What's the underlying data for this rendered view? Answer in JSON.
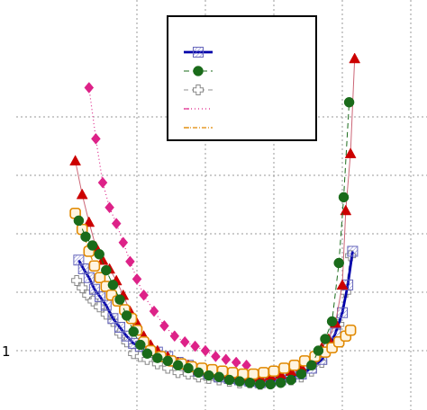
{
  "chart_data": {
    "type": "scatter",
    "title": "",
    "xlabel": "",
    "ylabel": "",
    "xlim": [
      0,
      5
    ],
    "ylim": [
      0.6,
      3.0
    ],
    "grid": true,
    "yticks": [
      1.0,
      1.4,
      1.8,
      2.2,
      2.6
    ],
    "ytick_labels": [
      "1",
      "",
      "",
      "",
      ""
    ],
    "xticks": [
      1,
      2,
      3,
      4,
      5
    ],
    "legend": {
      "placement": "top-center",
      "entries": [
        "",
        "",
        "",
        "",
        ""
      ]
    },
    "series": [
      {
        "marker": "square-hatched",
        "color": "#0000aa",
        "line": "solid-thick",
        "points": [
          [
            0.15,
            1.62
          ],
          [
            0.22,
            1.56
          ],
          [
            0.3,
            1.5
          ],
          [
            0.38,
            1.42
          ],
          [
            0.46,
            1.37
          ],
          [
            0.55,
            1.31
          ],
          [
            0.65,
            1.22
          ],
          [
            0.75,
            1.16
          ],
          [
            0.85,
            1.1
          ],
          [
            0.95,
            1.05
          ],
          [
            1.05,
            1.03
          ],
          [
            1.15,
            1.02
          ],
          [
            1.3,
            0.99
          ],
          [
            1.45,
            0.96
          ],
          [
            1.6,
            0.92
          ],
          [
            1.75,
            0.9
          ],
          [
            1.9,
            0.86
          ],
          [
            2.05,
            0.84
          ],
          [
            2.2,
            0.82
          ],
          [
            2.35,
            0.81
          ],
          [
            2.5,
            0.8
          ],
          [
            2.65,
            0.79
          ],
          [
            2.8,
            0.78
          ],
          [
            2.95,
            0.79
          ],
          [
            3.1,
            0.8
          ],
          [
            3.25,
            0.82
          ],
          [
            3.4,
            0.84
          ],
          [
            3.55,
            0.88
          ],
          [
            3.7,
            0.94
          ],
          [
            3.8,
            1.02
          ],
          [
            3.9,
            1.12
          ],
          [
            4.0,
            1.26
          ],
          [
            4.08,
            1.45
          ],
          [
            4.15,
            1.68
          ]
        ]
      },
      {
        "marker": "circle",
        "color": "#1a6b1a",
        "line": "dashed",
        "points": [
          [
            0.15,
            1.89
          ],
          [
            0.25,
            1.78
          ],
          [
            0.35,
            1.72
          ],
          [
            0.45,
            1.66
          ],
          [
            0.55,
            1.55
          ],
          [
            0.65,
            1.45
          ],
          [
            0.75,
            1.35
          ],
          [
            0.85,
            1.24
          ],
          [
            0.95,
            1.13
          ],
          [
            1.05,
            1.04
          ],
          [
            1.15,
            0.98
          ],
          [
            1.3,
            0.95
          ],
          [
            1.45,
            0.93
          ],
          [
            1.6,
            0.9
          ],
          [
            1.75,
            0.88
          ],
          [
            1.9,
            0.85
          ],
          [
            2.05,
            0.83
          ],
          [
            2.2,
            0.82
          ],
          [
            2.35,
            0.8
          ],
          [
            2.5,
            0.79
          ],
          [
            2.65,
            0.78
          ],
          [
            2.8,
            0.77
          ],
          [
            2.95,
            0.77
          ],
          [
            3.1,
            0.78
          ],
          [
            3.25,
            0.8
          ],
          [
            3.4,
            0.84
          ],
          [
            3.55,
            0.9
          ],
          [
            3.65,
            1.0
          ],
          [
            3.75,
            1.08
          ],
          [
            3.85,
            1.2
          ],
          [
            3.95,
            1.6
          ],
          [
            4.02,
            2.05
          ],
          [
            4.1,
            2.7
          ]
        ]
      },
      {
        "marker": "cross",
        "color": "#909090",
        "line": "dashed-gray",
        "points": [
          [
            0.12,
            1.48
          ],
          [
            0.2,
            1.43
          ],
          [
            0.28,
            1.38
          ],
          [
            0.36,
            1.34
          ],
          [
            0.45,
            1.3
          ],
          [
            0.55,
            1.25
          ],
          [
            0.65,
            1.2
          ],
          [
            0.75,
            1.12
          ],
          [
            0.85,
            1.06
          ],
          [
            0.95,
            0.98
          ],
          [
            1.05,
            0.96
          ],
          [
            1.15,
            0.94
          ],
          [
            1.3,
            0.91
          ],
          [
            1.45,
            0.88
          ],
          [
            1.6,
            0.85
          ],
          [
            1.75,
            0.84
          ],
          [
            1.9,
            0.82
          ],
          [
            2.05,
            0.81
          ],
          [
            2.2,
            0.8
          ],
          [
            2.35,
            0.79
          ],
          [
            2.5,
            0.78
          ],
          [
            2.65,
            0.78
          ],
          [
            2.8,
            0.77
          ],
          [
            2.95,
            0.78
          ],
          [
            3.1,
            0.79
          ],
          [
            3.25,
            0.8
          ],
          [
            3.4,
            0.82
          ],
          [
            3.55,
            0.86
          ],
          [
            3.7,
            0.92
          ],
          [
            3.85,
            1.03
          ],
          [
            3.95,
            1.18
          ],
          [
            4.05,
            1.4
          ],
          [
            4.12,
            1.65
          ]
        ]
      },
      {
        "marker": "diamond",
        "color": "#dd2288",
        "line": "dotted",
        "points": [
          [
            0.3,
            2.8
          ],
          [
            0.4,
            2.45
          ],
          [
            0.5,
            2.15
          ],
          [
            0.6,
            1.98
          ],
          [
            0.7,
            1.87
          ],
          [
            0.8,
            1.74
          ],
          [
            0.9,
            1.61
          ],
          [
            1.0,
            1.49
          ],
          [
            1.1,
            1.38
          ],
          [
            1.25,
            1.27
          ],
          [
            1.4,
            1.17
          ],
          [
            1.55,
            1.1
          ],
          [
            1.7,
            1.06
          ],
          [
            1.85,
            1.03
          ],
          [
            2.0,
            1.0
          ],
          [
            2.15,
            0.96
          ],
          [
            2.3,
            0.94
          ],
          [
            2.45,
            0.92
          ],
          [
            2.6,
            0.9
          ]
        ]
      },
      {
        "marker": "triangle",
        "color": "#cc0000",
        "line": "solid-thin",
        "points": [
          [
            0.1,
            2.3
          ],
          [
            0.2,
            2.07
          ],
          [
            0.3,
            1.88
          ],
          [
            0.4,
            1.71
          ],
          [
            0.5,
            1.62
          ],
          [
            0.6,
            1.56
          ],
          [
            0.7,
            1.48
          ],
          [
            0.8,
            1.38
          ],
          [
            0.9,
            1.27
          ],
          [
            1.0,
            1.19
          ],
          [
            1.1,
            1.1
          ],
          [
            1.2,
            1.04
          ],
          [
            1.3,
            1.0
          ],
          [
            1.45,
            0.96
          ],
          [
            1.6,
            0.92
          ],
          [
            1.75,
            0.9
          ],
          [
            1.9,
            0.87
          ],
          [
            2.05,
            0.86
          ],
          [
            2.2,
            0.85
          ],
          [
            2.35,
            0.84
          ],
          [
            2.5,
            0.83
          ],
          [
            2.65,
            0.82
          ],
          [
            2.8,
            0.82
          ],
          [
            2.95,
            0.83
          ],
          [
            3.1,
            0.84
          ],
          [
            3.25,
            0.86
          ],
          [
            3.4,
            0.89
          ],
          [
            3.55,
            0.94
          ],
          [
            3.7,
            1.02
          ],
          [
            3.8,
            1.08
          ],
          [
            3.9,
            1.19
          ],
          [
            4.0,
            1.45
          ],
          [
            4.05,
            1.96
          ],
          [
            4.12,
            2.35
          ],
          [
            4.18,
            3.0
          ]
        ]
      },
      {
        "marker": "square-rounded",
        "color": "#e08800",
        "line": "dashdot",
        "points": [
          [
            0.1,
            1.94
          ],
          [
            0.2,
            1.83
          ],
          [
            0.3,
            1.68
          ],
          [
            0.38,
            1.58
          ],
          [
            0.46,
            1.5
          ],
          [
            0.55,
            1.44
          ],
          [
            0.63,
            1.38
          ],
          [
            0.72,
            1.34
          ],
          [
            0.82,
            1.28
          ],
          [
            0.92,
            1.22
          ],
          [
            1.0,
            1.14
          ],
          [
            1.1,
            1.06
          ],
          [
            1.2,
            1.0
          ],
          [
            1.35,
            0.96
          ],
          [
            1.5,
            0.93
          ],
          [
            1.65,
            0.91
          ],
          [
            1.8,
            0.89
          ],
          [
            1.95,
            0.88
          ],
          [
            2.1,
            0.87
          ],
          [
            2.25,
            0.86
          ],
          [
            2.4,
            0.85
          ],
          [
            2.55,
            0.84
          ],
          [
            2.7,
            0.84
          ],
          [
            2.85,
            0.85
          ],
          [
            3.0,
            0.86
          ],
          [
            3.15,
            0.88
          ],
          [
            3.3,
            0.9
          ],
          [
            3.45,
            0.93
          ],
          [
            3.6,
            0.96
          ],
          [
            3.75,
            0.99
          ],
          [
            3.85,
            1.02
          ],
          [
            3.95,
            1.06
          ],
          [
            4.05,
            1.1
          ],
          [
            4.12,
            1.14
          ]
        ]
      }
    ]
  }
}
